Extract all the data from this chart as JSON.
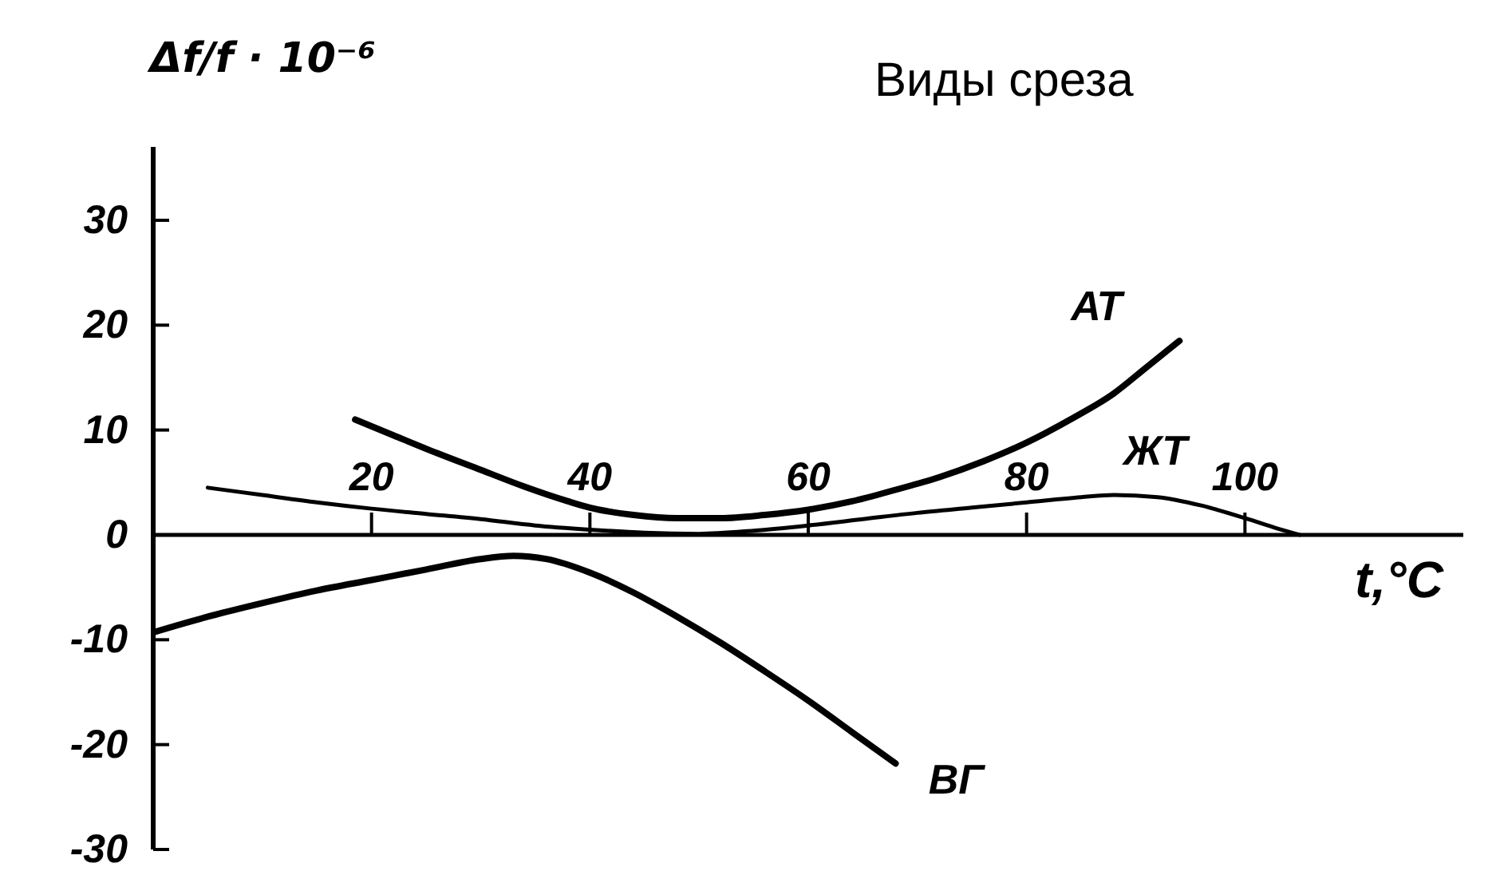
{
  "chart_data": {
    "type": "line",
    "xlabel": "t,°C",
    "ylabel": "Δf/f · 10⁻⁶",
    "annotations": [
      "Виды среза"
    ],
    "xlim": [
      0,
      120
    ],
    "xticks": [
      20,
      40,
      60,
      80,
      100
    ],
    "ylim": [
      -30,
      37
    ],
    "yticks": [
      -30,
      -20,
      -10,
      0,
      10,
      20,
      30
    ],
    "series": [
      {
        "name": "АТ",
        "color": "#000000",
        "x": [
          18.5,
          22,
          26,
          30,
          34,
          38,
          40,
          44,
          48,
          52,
          56,
          60,
          64,
          68,
          72,
          76,
          80,
          84,
          88,
          91,
          94
        ],
        "values": [
          11,
          9.5,
          7.8,
          6.2,
          4.6,
          3.2,
          2.6,
          1.9,
          1.6,
          1.6,
          1.9,
          2.4,
          3.2,
          4.3,
          5.5,
          7,
          8.8,
          11,
          13.5,
          16,
          18.5
        ]
      },
      {
        "name": "ЖТ",
        "color": "#000000",
        "x": [
          5,
          10,
          15,
          20,
          25,
          30,
          35,
          40,
          45,
          50,
          55,
          60,
          65,
          70,
          75,
          80,
          85,
          88,
          92,
          96,
          100,
          103,
          105
        ],
        "values": [
          4.5,
          3.8,
          3.1,
          2.5,
          2,
          1.5,
          0.9,
          0.5,
          0.2,
          0.1,
          0.4,
          0.9,
          1.5,
          2.1,
          2.6,
          3.1,
          3.6,
          3.8,
          3.6,
          2.8,
          1.6,
          0.6,
          0
        ]
      },
      {
        "name": "ВГ",
        "color": "#000000",
        "x": [
          0,
          5,
          10,
          15,
          20,
          25,
          30,
          33,
          36,
          40,
          44,
          48,
          52,
          56,
          60,
          64,
          68
        ],
        "values": [
          -9.3,
          -7.8,
          -6.5,
          -5.3,
          -4.3,
          -3.3,
          -2.3,
          -2,
          -2.3,
          -3.6,
          -5.5,
          -7.8,
          -10.3,
          -13,
          -15.8,
          -18.8,
          -21.8
        ]
      }
    ]
  }
}
